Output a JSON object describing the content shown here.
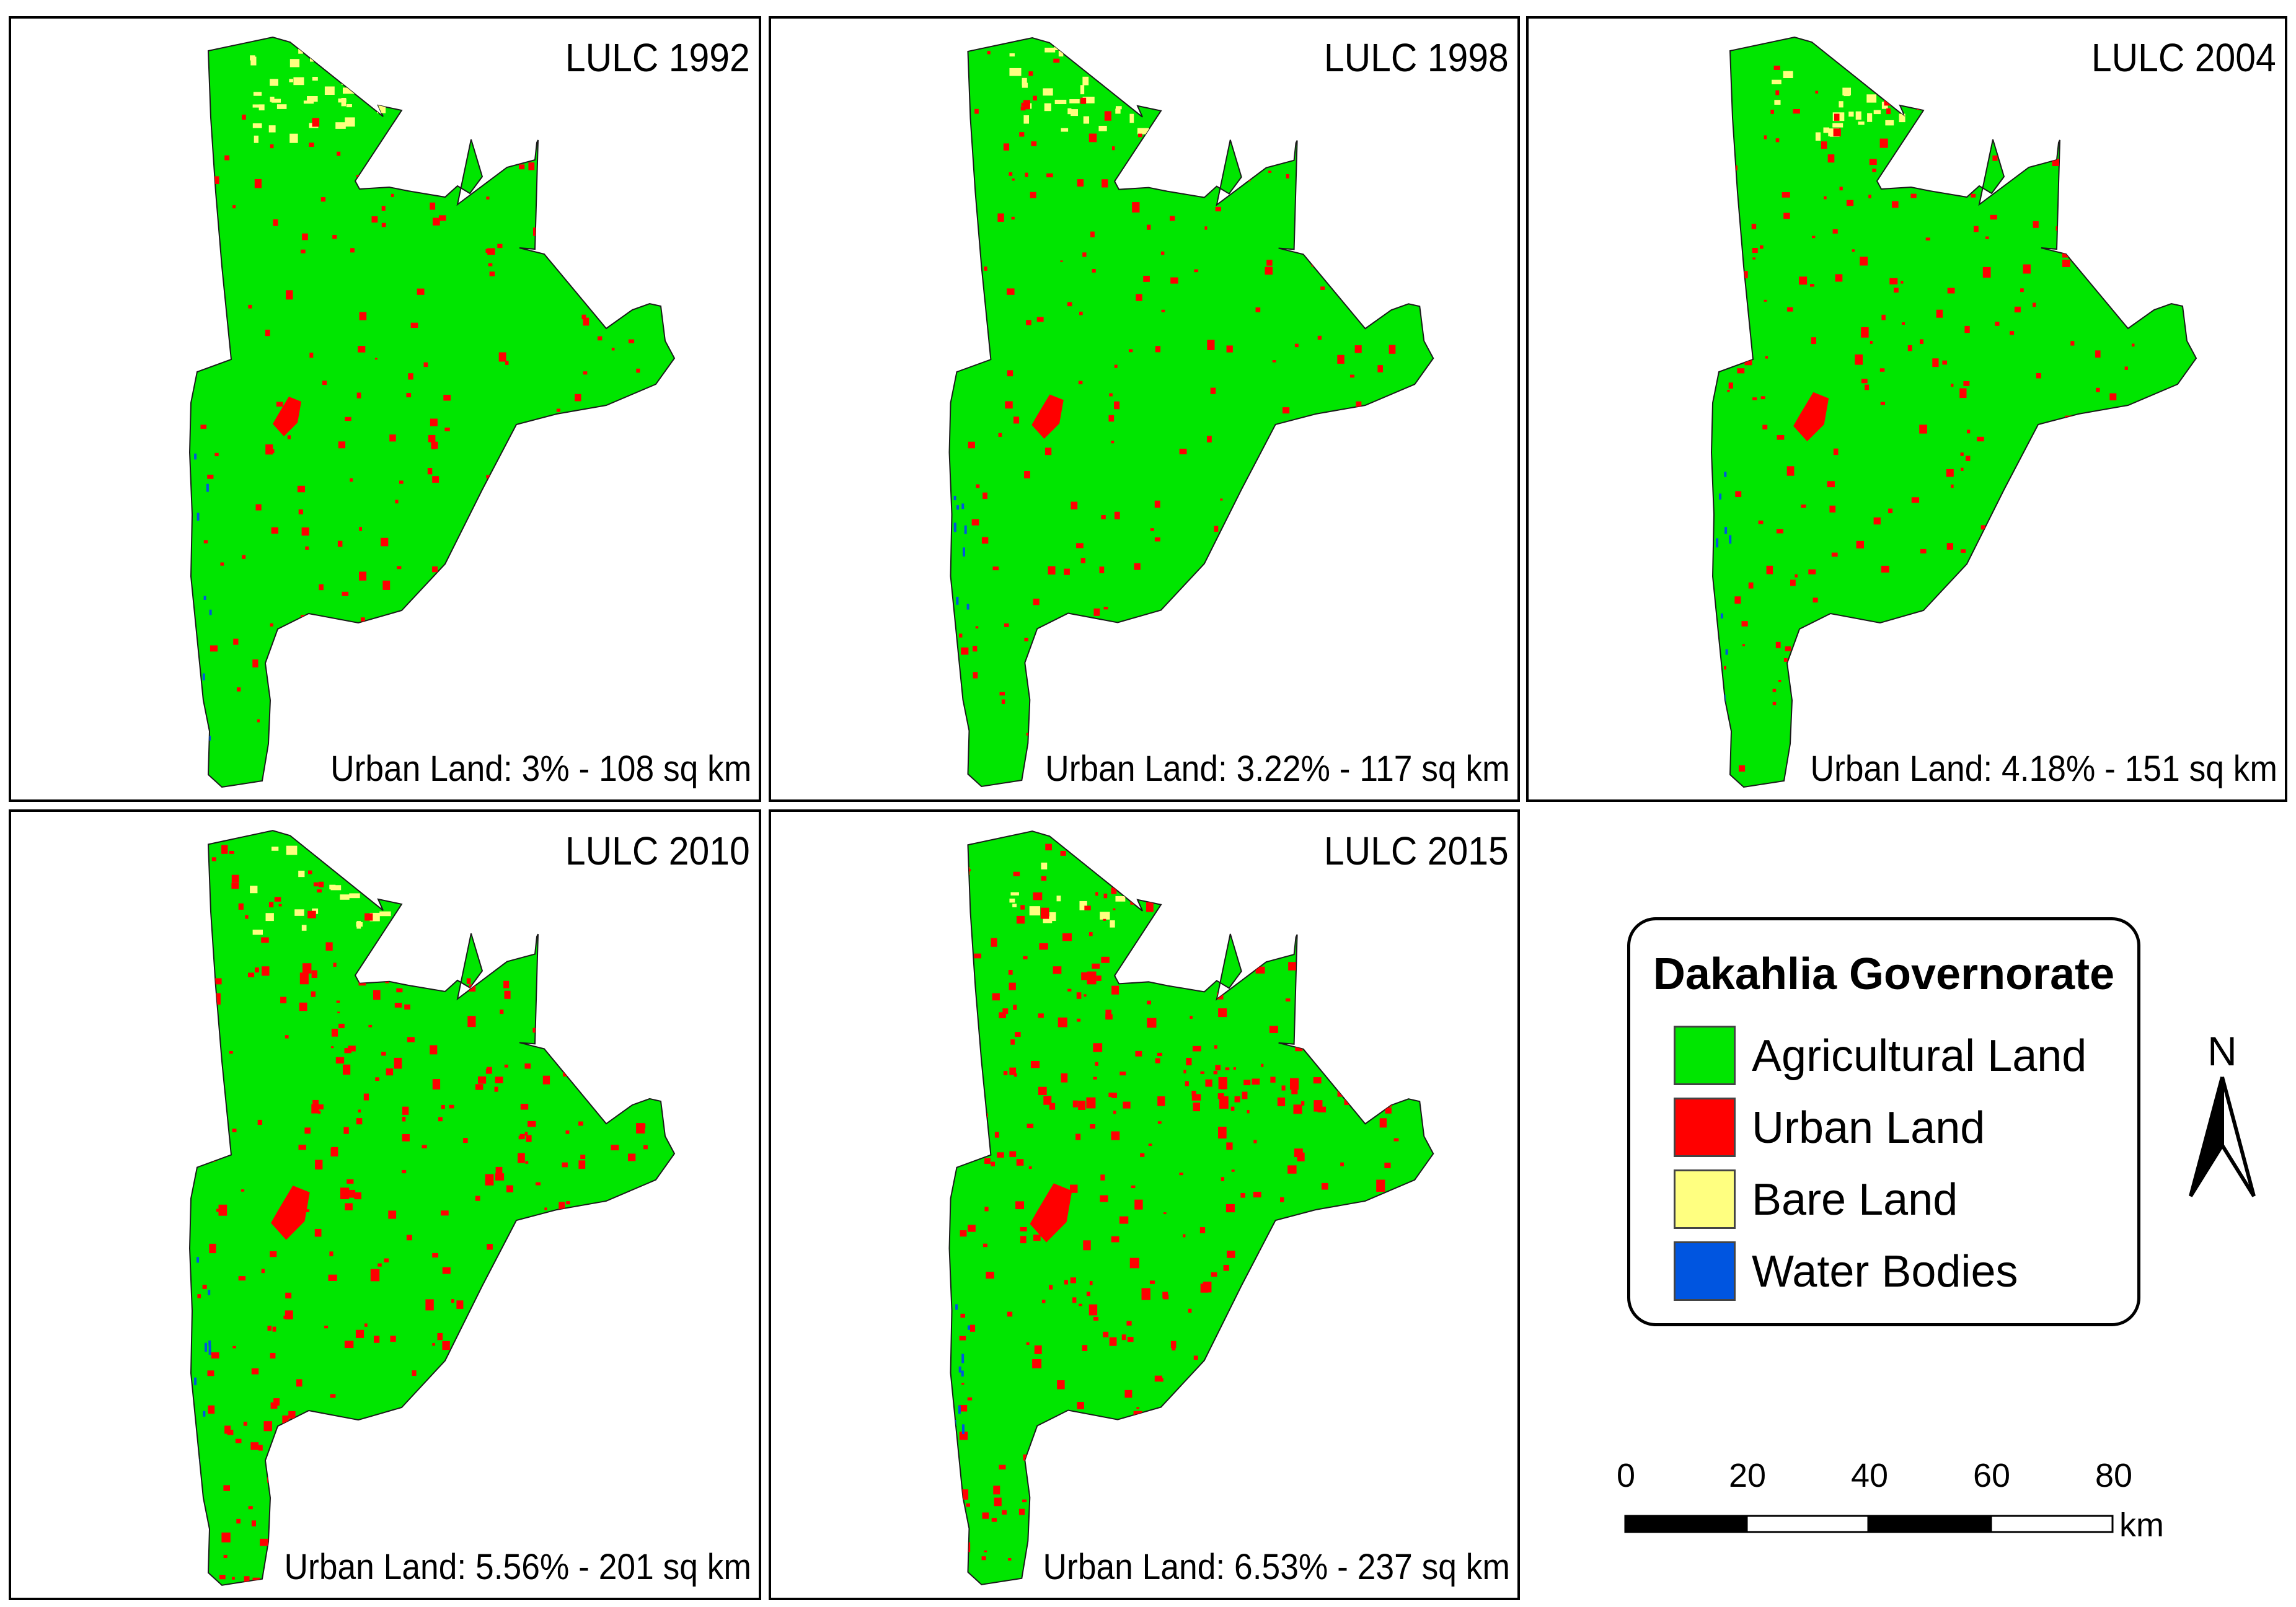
{
  "panels": [
    {
      "title": "LULC 1992",
      "stat": "Urban Land: 3% - 108 sq km",
      "urban_share": 0.03
    },
    {
      "title": "LULC 1998",
      "stat": "Urban Land: 3.22% - 117 sq km",
      "urban_share": 0.0322
    },
    {
      "title": "LULC 2004",
      "stat": "Urban Land: 4.18% - 151 sq km",
      "urban_share": 0.0418
    },
    {
      "title": "LULC 2010",
      "stat": "Urban Land: 5.56% - 201 sq km",
      "urban_share": 0.0556
    },
    {
      "title": "LULC 2015",
      "stat": "Urban Land: 6.53% - 237 sq km",
      "urban_share": 0.0653
    }
  ],
  "legend": {
    "title": "Dakahlia Governorate",
    "items": [
      {
        "label": "Agricultural Land",
        "color": "#00e600"
      },
      {
        "label": "Urban Land",
        "color": "#ff0000"
      },
      {
        "label": "Bare Land",
        "color": "#ffff80"
      },
      {
        "label": "Water Bodies",
        "color": "#0055e0"
      }
    ]
  },
  "north_arrow": {
    "label": "N"
  },
  "scale_bar": {
    "ticks": [
      "0",
      "20",
      "40",
      "60",
      "80"
    ],
    "unit": "km"
  }
}
